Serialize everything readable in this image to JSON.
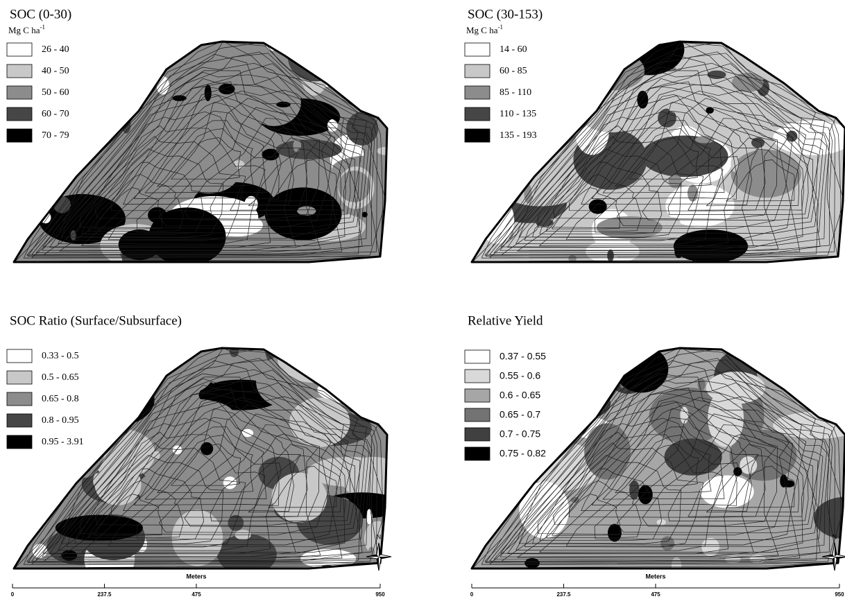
{
  "panels": [
    {
      "title": "SOC (0-30)",
      "unit": {
        "base": "Mg C ha",
        "exp": "-1"
      },
      "legend": [
        {
          "label": "26 - 40",
          "color": "#ffffff"
        },
        {
          "label": "40 - 50",
          "color": "#c8c8c8"
        },
        {
          "label": "50 - 60",
          "color": "#8c8c8c"
        },
        {
          "label": "60 - 70",
          "color": "#464646"
        },
        {
          "label": "70 - 79",
          "color": "#000000"
        }
      ]
    },
    {
      "title": "SOC (30-153)",
      "unit": {
        "base": "Mg C ha",
        "exp": "-1"
      },
      "legend": [
        {
          "label": "14 - 60",
          "color": "#ffffff"
        },
        {
          "label": "60 - 85",
          "color": "#c8c8c8"
        },
        {
          "label": "85 - 110",
          "color": "#8c8c8c"
        },
        {
          "label": "110 - 135",
          "color": "#464646"
        },
        {
          "label": "135 - 193",
          "color": "#000000"
        }
      ]
    },
    {
      "title": "SOC Ratio (Surface/Subsurface)",
      "legend": [
        {
          "label": "0.33 - 0.5",
          "color": "#ffffff"
        },
        {
          "label": "0.5 - 0.65",
          "color": "#c8c8c8"
        },
        {
          "label": "0.65 - 0.8",
          "color": "#8c8c8c"
        },
        {
          "label": "0.8 - 0.95",
          "color": "#464646"
        },
        {
          "label": "0.95 - 3.91",
          "color": "#000000"
        }
      ]
    },
    {
      "title": "Relative Yield",
      "legend": [
        {
          "label": "0.37 - 0.55",
          "color": "#ffffff"
        },
        {
          "label": "0.55 - 0.6",
          "color": "#d9d9d9"
        },
        {
          "label": "0.6 - 0.65",
          "color": "#a6a6a6"
        },
        {
          "label": "0.65 - 0.7",
          "color": "#737373"
        },
        {
          "label": "0.7 - 0.75",
          "color": "#404040"
        },
        {
          "label": "0.75 - 0.82",
          "color": "#000000"
        }
      ]
    }
  ],
  "scale_bars": [
    {
      "title": "Meters",
      "ticks": [
        "0",
        "237.5",
        "475",
        "950"
      ]
    },
    {
      "title": "Meters",
      "ticks": [
        "0",
        "237.5",
        "475",
        "950"
      ]
    }
  ],
  "north": [
    "N",
    "N"
  ]
}
